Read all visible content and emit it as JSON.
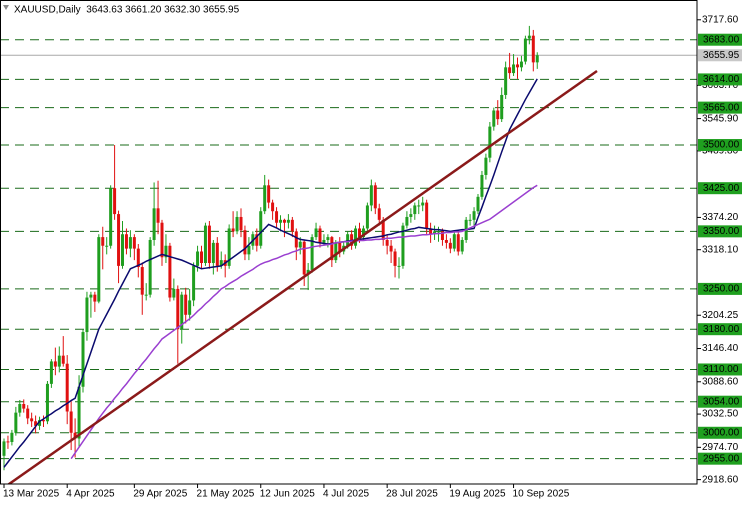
{
  "chart_data": {
    "type": "candlestick",
    "title": "XAUUSD,Daily  3643.63 3661.20 3632.30 3655.95",
    "categories": [
      "13 Mar 2025",
      null,
      null,
      null,
      null,
      null,
      null,
      null,
      null,
      null,
      null,
      null,
      null,
      null,
      null,
      null,
      "4 Apr 2025",
      null,
      null,
      null,
      null,
      null,
      null,
      null,
      null,
      null,
      null,
      null,
      null,
      null,
      null,
      null,
      null,
      "29 Apr 2025",
      null,
      null,
      null,
      null,
      null,
      null,
      null,
      null,
      null,
      null,
      null,
      null,
      null,
      null,
      null,
      "21 May 2025",
      null,
      null,
      null,
      null,
      null,
      null,
      null,
      null,
      null,
      null,
      null,
      null,
      null,
      null,
      null,
      "12 Jun 2025",
      null,
      null,
      null,
      null,
      null,
      null,
      null,
      null,
      null,
      null,
      null,
      null,
      null,
      null,
      null,
      "4 Jul 2025",
      null,
      null,
      null,
      null,
      null,
      null,
      null,
      null,
      null,
      null,
      null,
      null,
      null,
      null,
      null,
      "28 Jul 2025",
      null,
      null,
      null,
      null,
      null,
      null,
      null,
      null,
      null,
      null,
      null,
      null,
      null,
      null,
      null,
      "19 Aug 2025",
      null,
      null,
      null,
      null,
      null,
      null,
      null,
      null,
      null,
      null,
      null,
      null,
      null,
      null,
      null,
      "10 Sep 2025",
      null,
      null,
      null,
      null,
      null,
      null
    ],
    "candles": {
      "up_color": "#1f9e1f",
      "down_color": "#e01010",
      "ohlc": [
        [
          2960,
          2990,
          2935,
          2985
        ],
        [
          2985,
          2995,
          2972,
          2984
        ],
        [
          2984,
          3005,
          2978,
          3000
        ],
        [
          3000,
          3045,
          2995,
          3035
        ],
        [
          3035,
          3057,
          3028,
          3050
        ],
        [
          3050,
          3058,
          3035,
          3042
        ],
        [
          3042,
          3048,
          3015,
          3025
        ],
        [
          3025,
          3035,
          3010,
          3020
        ],
        [
          3020,
          3030,
          2999,
          3012
        ],
        [
          3012,
          3028,
          3005,
          3022
        ],
        [
          3022,
          3030,
          3010,
          3020
        ],
        [
          3020,
          3090,
          3015,
          3085
        ],
        [
          3085,
          3128,
          3078,
          3124
        ],
        [
          3124,
          3148,
          3100,
          3115
        ],
        [
          3115,
          3150,
          3105,
          3134
        ],
        [
          3134,
          3168,
          3115,
          3120
        ],
        [
          3120,
          3135,
          3015,
          3037
        ],
        [
          3037,
          3055,
          2970,
          3000
        ],
        [
          3000,
          3025,
          2957,
          2990
        ],
        [
          2990,
          3100,
          2975,
          3080
        ],
        [
          3080,
          3180,
          3070,
          3175
        ],
        [
          3175,
          3245,
          3160,
          3235
        ],
        [
          3235,
          3245,
          3200,
          3240
        ],
        [
          3240,
          3245,
          3210,
          3228
        ],
        [
          3228,
          3345,
          3225,
          3340
        ],
        [
          3340,
          3358,
          3284,
          3325
        ],
        [
          3325,
          3340,
          3310,
          3325
        ],
        [
          3325,
          3430,
          3320,
          3425
        ],
        [
          3425,
          3500,
          3370,
          3380
        ],
        [
          3380,
          3386,
          3260,
          3290
        ],
        [
          3290,
          3368,
          3285,
          3345
        ],
        [
          3345,
          3355,
          3310,
          3320
        ],
        [
          3320,
          3352,
          3305,
          3340
        ],
        [
          3340,
          3345,
          3300,
          3320
        ],
        [
          3320,
          3328,
          3270,
          3288
        ],
        [
          3288,
          3296,
          3205,
          3240
        ],
        [
          3240,
          3260,
          3230,
          3240
        ],
        [
          3240,
          3340,
          3235,
          3335
        ],
        [
          3335,
          3435,
          3325,
          3390
        ],
        [
          3390,
          3438,
          3345,
          3365
        ],
        [
          3365,
          3370,
          3290,
          3305
        ],
        [
          3305,
          3345,
          3295,
          3325
        ],
        [
          3325,
          3330,
          3228,
          3235
        ],
        [
          3235,
          3268,
          3230,
          3250
        ],
        [
          3250,
          3256,
          3120,
          3180
        ],
        [
          3180,
          3245,
          3155,
          3240
        ],
        [
          3240,
          3252,
          3190,
          3205
        ],
        [
          3205,
          3250,
          3195,
          3230
        ],
        [
          3230,
          3296,
          3220,
          3290
        ],
        [
          3290,
          3325,
          3280,
          3315
        ],
        [
          3315,
          3325,
          3285,
          3295
        ],
        [
          3295,
          3365,
          3290,
          3360
        ],
        [
          3360,
          3368,
          3285,
          3295
        ],
        [
          3295,
          3335,
          3275,
          3330
        ],
        [
          3330,
          3340,
          3280,
          3290
        ],
        [
          3290,
          3315,
          3285,
          3300
        ],
        [
          3300,
          3310,
          3270,
          3290
        ],
        [
          3290,
          3362,
          3285,
          3355
        ],
        [
          3355,
          3385,
          3340,
          3350
        ],
        [
          3350,
          3385,
          3345,
          3375
        ],
        [
          3375,
          3390,
          3340,
          3352
        ],
        [
          3352,
          3360,
          3300,
          3310
        ],
        [
          3310,
          3340,
          3300,
          3325
        ],
        [
          3325,
          3350,
          3318,
          3345
        ],
        [
          3345,
          3355,
          3315,
          3325
        ],
        [
          3325,
          3392,
          3320,
          3385
        ],
        [
          3385,
          3448,
          3380,
          3430
        ],
        [
          3430,
          3440,
          3390,
          3400
        ],
        [
          3400,
          3405,
          3370,
          3385
        ],
        [
          3385,
          3392,
          3355,
          3365
        ],
        [
          3365,
          3378,
          3350,
          3370
        ],
        [
          3370,
          3372,
          3340,
          3365
        ],
        [
          3365,
          3380,
          3355,
          3370
        ],
        [
          3370,
          3375,
          3340,
          3350
        ],
        [
          3350,
          3355,
          3300,
          3322
        ],
        [
          3322,
          3340,
          3310,
          3332
        ],
        [
          3332,
          3336,
          3255,
          3275
        ],
        [
          3275,
          3295,
          3248,
          3283
        ],
        [
          3283,
          3345,
          3278,
          3340
        ],
        [
          3340,
          3365,
          3335,
          3355
        ],
        [
          3355,
          3360,
          3322,
          3330
        ],
        [
          3330,
          3345,
          3325,
          3335
        ],
        [
          3335,
          3345,
          3322,
          3340
        ],
        [
          3340,
          3342,
          3288,
          3300
        ],
        [
          3300,
          3335,
          3295,
          3330
        ],
        [
          3330,
          3340,
          3305,
          3315
        ],
        [
          3315,
          3332,
          3310,
          3325
        ],
        [
          3325,
          3350,
          3320,
          3345
        ],
        [
          3345,
          3352,
          3318,
          3325
        ],
        [
          3325,
          3360,
          3320,
          3355
        ],
        [
          3355,
          3365,
          3330,
          3340
        ],
        [
          3340,
          3360,
          3335,
          3355
        ],
        [
          3355,
          3400,
          3350,
          3395
        ],
        [
          3395,
          3440,
          3385,
          3430
        ],
        [
          3430,
          3435,
          3380,
          3390
        ],
        [
          3390,
          3398,
          3360,
          3370
        ],
        [
          3370,
          3375,
          3325,
          3335
        ],
        [
          3335,
          3345,
          3310,
          3325
        ],
        [
          3325,
          3335,
          3295,
          3315
        ],
        [
          3315,
          3320,
          3270,
          3290
        ],
        [
          3290,
          3305,
          3268,
          3290
        ],
        [
          3290,
          3365,
          3285,
          3360
        ],
        [
          3360,
          3385,
          3355,
          3375
        ],
        [
          3375,
          3390,
          3365,
          3380
        ],
        [
          3380,
          3400,
          3370,
          3395
        ],
        [
          3395,
          3405,
          3380,
          3395
        ],
        [
          3395,
          3410,
          3385,
          3400
        ],
        [
          3400,
          3405,
          3345,
          3355
        ],
        [
          3355,
          3365,
          3330,
          3345
        ],
        [
          3345,
          3360,
          3335,
          3350
        ],
        [
          3350,
          3358,
          3332,
          3350
        ],
        [
          3350,
          3355,
          3325,
          3335
        ],
        [
          3335,
          3345,
          3320,
          3330
        ],
        [
          3330,
          3338,
          3312,
          3320
        ],
        [
          3320,
          3350,
          3315,
          3345
        ],
        [
          3345,
          3350,
          3308,
          3315
        ],
        [
          3315,
          3340,
          3310,
          3335
        ],
        [
          3335,
          3375,
          3330,
          3370
        ],
        [
          3370,
          3380,
          3360,
          3370
        ],
        [
          3370,
          3392,
          3360,
          3385
        ],
        [
          3385,
          3415,
          3380,
          3410
        ],
        [
          3410,
          3455,
          3405,
          3448
        ],
        [
          3448,
          3485,
          3440,
          3478
        ],
        [
          3478,
          3540,
          3470,
          3532
        ],
        [
          3532,
          3565,
          3525,
          3560
        ],
        [
          3560,
          3578,
          3535,
          3545
        ],
        [
          3545,
          3600,
          3540,
          3587
        ],
        [
          3587,
          3645,
          3580,
          3635
        ],
        [
          3635,
          3660,
          3615,
          3625
        ],
        [
          3625,
          3658,
          3620,
          3640
        ],
        [
          3640,
          3652,
          3615,
          3635
        ],
        [
          3635,
          3655,
          3628,
          3645
        ],
        [
          3645,
          3690,
          3640,
          3685
        ],
        [
          3685,
          3707,
          3675,
          3690
        ],
        [
          3690,
          3700,
          3628,
          3643.63
        ],
        [
          3643.63,
          3661.2,
          3632.3,
          3655.95
        ]
      ]
    },
    "lines": [
      {
        "color": "#0a0a6e",
        "values": [
          2940,
          2949,
          2958,
          2967,
          2976,
          2984,
          2993,
          3002,
          3011,
          3020,
          3024,
          3029,
          3033,
          3038,
          3042,
          3047,
          3051,
          3056,
          3060,
          3080,
          3100,
          3120,
          3140,
          3160,
          3180,
          3193,
          3206,
          3219,
          3232,
          3246,
          3259,
          3272,
          3285,
          3288,
          3291,
          3294,
          3298,
          3301,
          3304,
          3307,
          3310,
          3308,
          3306,
          3304,
          3302,
          3300,
          3297,
          3294,
          3291,
          3288,
          3285,
          3286,
          3287,
          3288,
          3289,
          3290,
          3295,
          3300,
          3305,
          3310,
          3315,
          3320,
          3327,
          3334,
          3341,
          3348,
          3355,
          3362,
          3359,
          3356,
          3352,
          3349,
          3346,
          3343,
          3339,
          3336,
          3335,
          3334,
          3333,
          3331,
          3330,
          3329,
          3328,
          3329,
          3330,
          3331,
          3332,
          3333,
          3334,
          3335,
          3336,
          3337,
          3338,
          3339,
          3340,
          3341,
          3342,
          3344,
          3345,
          3347,
          3349,
          3350,
          3352,
          3354,
          3355,
          3357,
          3356,
          3355,
          3354,
          3353,
          3353,
          3352,
          3351,
          3350,
          3351,
          3352,
          3353,
          3353,
          3354,
          3355,
          3374,
          3392,
          3411,
          3429,
          3448,
          3468,
          3488,
          3507,
          3527,
          3540,
          3553,
          3566,
          3579,
          3591,
          3603,
          3615
        ]
      },
      {
        "color": "#9a3fd0",
        "values": [
          null,
          null,
          null,
          null,
          null,
          null,
          null,
          null,
          null,
          null,
          null,
          null,
          null,
          null,
          null,
          null,
          null,
          2955,
          2965,
          2975,
          2985,
          2995,
          3005,
          3015,
          3025,
          3034,
          3043,
          3051,
          3060,
          3068,
          3077,
          3085,
          3094,
          3103,
          3111,
          3120,
          3128,
          3137,
          3146,
          3154,
          3163,
          3168,
          3173,
          3178,
          3183,
          3188,
          3193,
          3198,
          3204,
          3211,
          3217,
          3224,
          3230,
          3237,
          3243,
          3250,
          3254,
          3259,
          3263,
          3267,
          3272,
          3276,
          3280,
          3284,
          3289,
          3293,
          3296,
          3298,
          3301,
          3303,
          3306,
          3309,
          3311,
          3314,
          3316,
          3319,
          3320,
          3321,
          3323,
          3324,
          3325,
          3326,
          3327,
          3328,
          3330,
          3331,
          3332,
          3332,
          3333,
          3333,
          3334,
          3334,
          3335,
          3335,
          3336,
          3336,
          3337,
          3338,
          3338,
          3339,
          3340,
          3340,
          3341,
          3342,
          3342,
          3343,
          3344,
          3344,
          3345,
          3346,
          3346,
          3347,
          3348,
          3348,
          3349,
          3349,
          3350,
          3353,
          3356,
          3359,
          3362,
          3365,
          3368,
          3371,
          3376,
          3381,
          3386,
          3391,
          3396,
          3401,
          3406,
          3411,
          3416,
          3421,
          3426,
          3430
        ]
      }
    ],
    "level_color": "#1a6b1a",
    "levels": [
      {
        "value": 3683,
        "label": "3683.00"
      },
      {
        "value": 3614,
        "label": "3614.00"
      },
      {
        "value": 3565,
        "label": "3565.00"
      },
      {
        "value": 3500,
        "label": "3500.00"
      },
      {
        "value": 3425,
        "label": "3425.00"
      },
      {
        "value": 3350,
        "label": "3350.00"
      },
      {
        "value": 3250,
        "label": "3250.00"
      },
      {
        "value": 3180,
        "label": "3180.00"
      },
      {
        "value": 3110,
        "label": "3110.00"
      },
      {
        "value": 3054,
        "label": "3054.00"
      },
      {
        "value": 3000,
        "label": "3000.00"
      },
      {
        "value": 2955,
        "label": "2955.00"
      }
    ],
    "last_price": {
      "value": 3655.95,
      "label": "3655.95"
    },
    "ylim": [
      2911,
      3752
    ],
    "yticks": [
      {
        "value": 3717.6,
        "label": "3717.60"
      },
      {
        "value": 3603.7,
        "label": "3603.70"
      },
      {
        "value": 3545.9,
        "label": "3545.90"
      },
      {
        "value": 3489.8,
        "label": "3489.80"
      },
      {
        "value": 3374.2,
        "label": "3374.20"
      },
      {
        "value": 3318.1,
        "label": "3318.10"
      },
      {
        "value": 3204.25,
        "label": "3204.25"
      },
      {
        "value": 3146.4,
        "label": "3146.40"
      },
      {
        "value": 3088.6,
        "label": "3088.60"
      },
      {
        "value": 3032.5,
        "label": "3032.50"
      },
      {
        "value": 2974.7,
        "label": "2974.70"
      },
      {
        "value": 2918.6,
        "label": "2918.60"
      }
    ]
  }
}
